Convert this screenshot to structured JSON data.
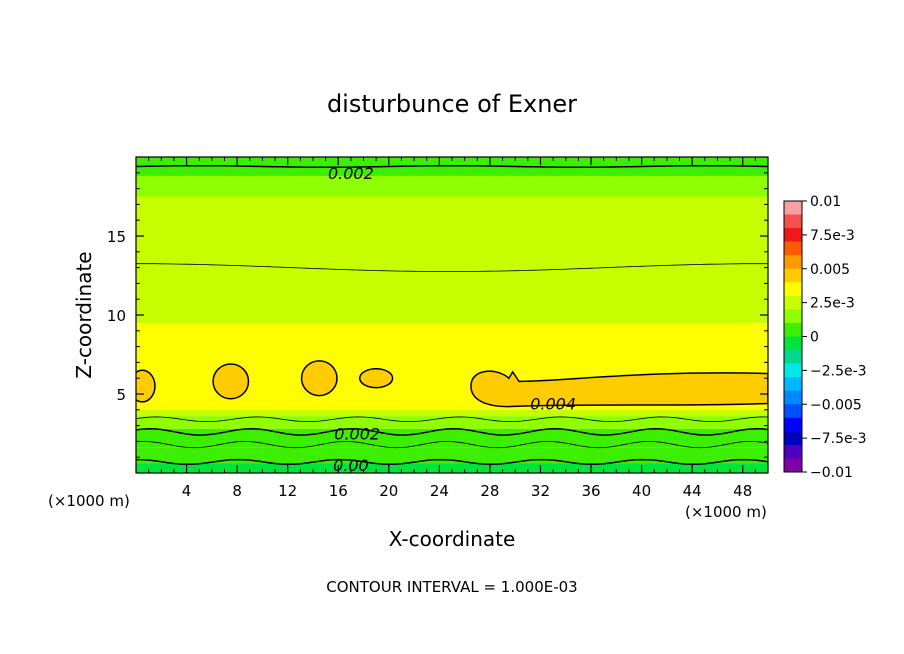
{
  "chart_data": {
    "type": "heatmap",
    "title": "disturbunce of Exner",
    "xlabel": "X-coordinate",
    "ylabel": "Z-coordinate",
    "x_unit_left": "(×1000 m)",
    "x_unit_right": "(×1000 m)",
    "footer": "CONTOUR INTERVAL = 1.000E-03",
    "xlim": [
      0,
      50
    ],
    "ylim": [
      0,
      20
    ],
    "x_ticks": [
      "4",
      "8",
      "12",
      "16",
      "20",
      "24",
      "28",
      "32",
      "36",
      "40",
      "44",
      "48"
    ],
    "x_tick_values": [
      4,
      8,
      12,
      16,
      20,
      24,
      28,
      32,
      36,
      40,
      44,
      48
    ],
    "y_ticks": [
      "5",
      "10",
      "15"
    ],
    "y_tick_values": [
      5,
      10,
      15
    ],
    "colorbar": {
      "labels": [
        "0.01",
        "7.5e-3",
        "0.005",
        "2.5e-3",
        "0",
        "−2.5e-3",
        "−0.005",
        "−7.5e-3",
        "−0.01"
      ],
      "label_values": [
        0.01,
        0.0075,
        0.005,
        0.0025,
        0,
        -0.0025,
        -0.005,
        -0.0075,
        -0.01
      ],
      "range": [
        -0.01,
        0.01
      ],
      "colors_top_to_bottom": [
        "#f7a0a0",
        "#f45050",
        "#ee1a1a",
        "#fe5a00",
        "#fe9a00",
        "#fecc00",
        "#fefe00",
        "#c6fe00",
        "#8efe00",
        "#3cee00",
        "#00e43c",
        "#00d890",
        "#00e8e8",
        "#00b8ff",
        "#0088ff",
        "#0050ff",
        "#0000ff",
        "#0000c0",
        "#5000c0",
        "#8000a8"
      ]
    },
    "field_bands": [
      {
        "z_range": [
          0,
          0.6
        ],
        "value_range": [
          0,
          0.0005
        ],
        "color": "#00e43c"
      },
      {
        "z_range": [
          0.6,
          1.6
        ],
        "value_range": [
          0,
          0.0005
        ],
        "color": "#3cee00"
      },
      {
        "z_range": [
          1.6,
          2.8
        ],
        "value_range": [
          0.0005,
          0.0015
        ],
        "color": "#3cee00"
      },
      {
        "z_range": [
          2.8,
          3.6
        ],
        "value_range": [
          0.0015,
          0.0025
        ],
        "color": "#8efe00"
      },
      {
        "z_range": [
          3.6,
          4.0
        ],
        "value_range": [
          0.0025,
          0.003
        ],
        "color": "#c6fe00"
      },
      {
        "z_range": [
          4.0,
          9.5
        ],
        "value_range": [
          0.003,
          0.004
        ],
        "color": "#fefe00"
      },
      {
        "z_range": [
          9.5,
          17.5
        ],
        "value_range": [
          0.0025,
          0.003
        ],
        "color": "#c6fe00"
      },
      {
        "z_range": [
          17.5,
          18.8
        ],
        "value_range": [
          0.002,
          0.0025
        ],
        "color": "#8efe00"
      },
      {
        "z_range": [
          18.8,
          20
        ],
        "value_range": [
          0.0015,
          0.002
        ],
        "color": "#3cee00"
      }
    ],
    "contour_labels": [
      {
        "text": "0.002",
        "x": 17.0,
        "z": 19.0
      },
      {
        "text": "0.004",
        "x": 33.0,
        "z": 4.4
      },
      {
        "text": "0.002",
        "x": 17.5,
        "z": 2.5
      },
      {
        "text": "0.00",
        "x": 17.0,
        "z": 0.5
      }
    ],
    "contour_levels": [
      0,
      0.001,
      0.002,
      0.003,
      0.004
    ],
    "max_regions": [
      {
        "x": 0.5,
        "z": 5.5,
        "value_range": [
          0.004,
          0.005
        ]
      },
      {
        "x": 7.5,
        "z": 5.8,
        "value_range": [
          0.004,
          0.005
        ]
      },
      {
        "x": 14.5,
        "z": 6.0,
        "value_range": [
          0.004,
          0.005
        ]
      },
      {
        "x": 19.0,
        "z": 6.0,
        "value_range": [
          0.004,
          0.005
        ]
      },
      {
        "x": 39.0,
        "z": 5.3,
        "value_range": [
          0.004,
          0.005
        ]
      }
    ]
  }
}
